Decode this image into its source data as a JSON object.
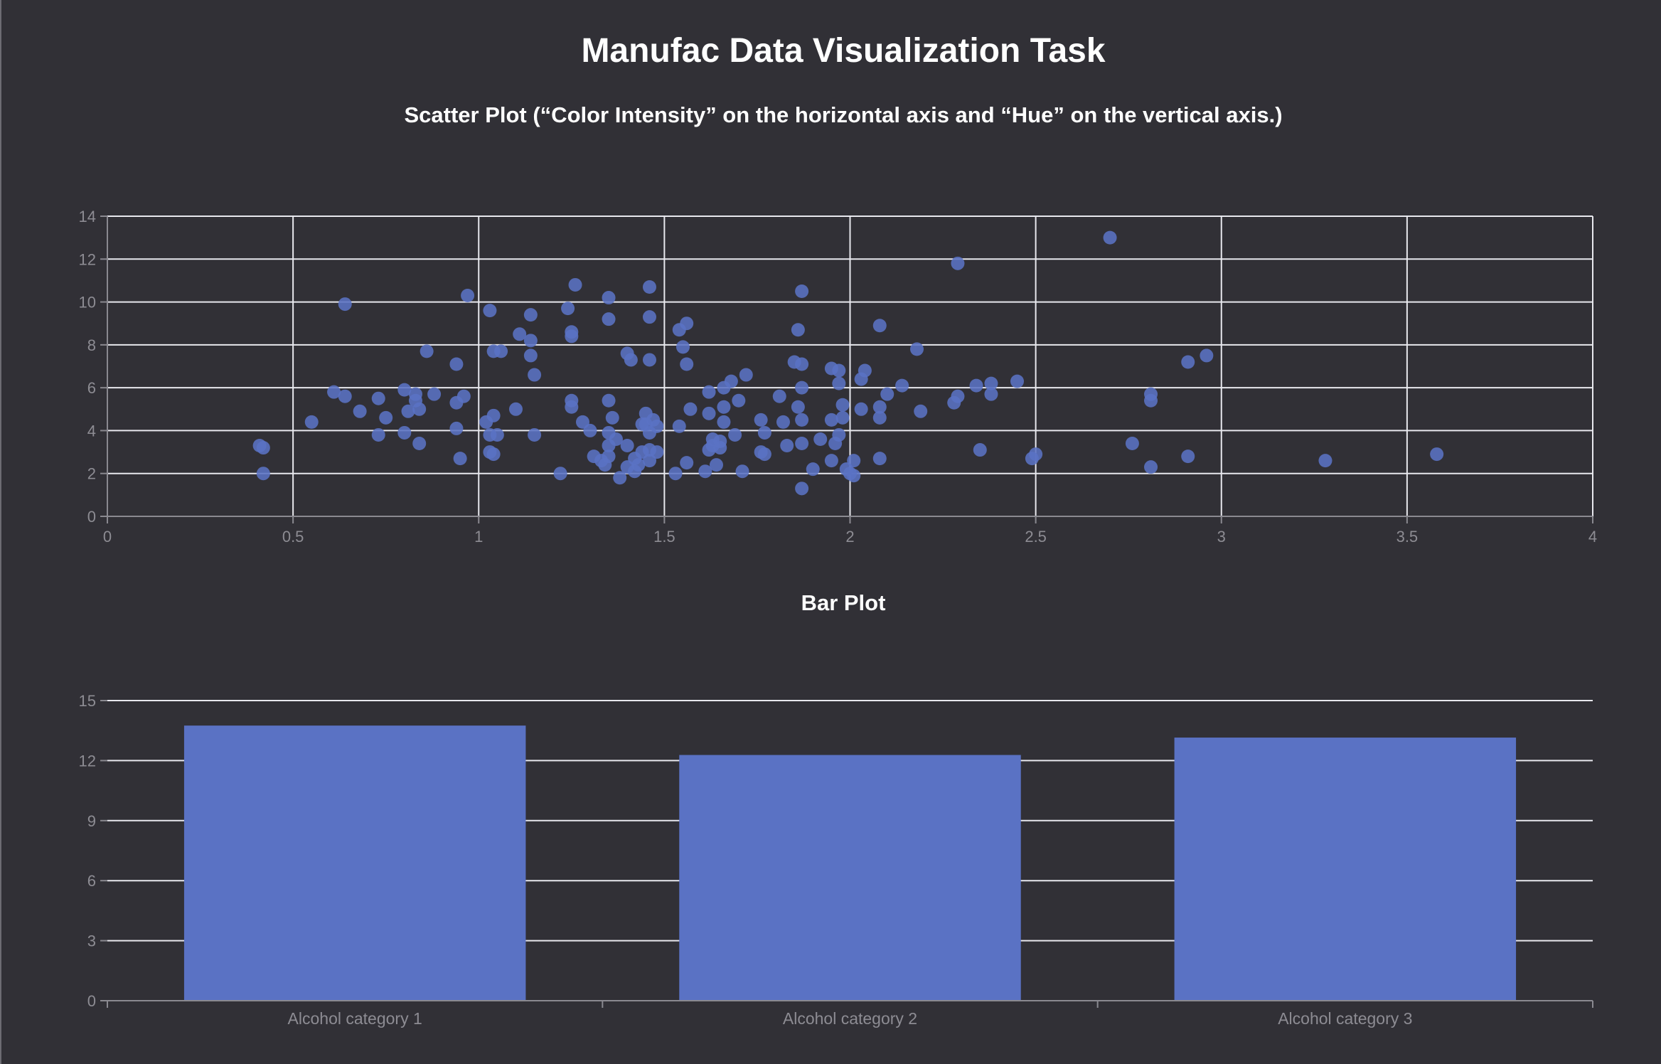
{
  "page": {
    "title": "Manufac Data Visualization Task"
  },
  "colors": {
    "background": "#313036",
    "series": "#5a72c4",
    "grid": "#e8e8ee",
    "tick": "#8d8c93"
  },
  "chart_data": [
    {
      "type": "scatter",
      "title": "Scatter Plot (“Color Intensity” on the horizontal axis and “Hue” on the vertical axis.)",
      "xlabel": "",
      "ylabel": "",
      "xlim": [
        0,
        4
      ],
      "ylim": [
        0,
        14
      ],
      "xticks": [
        0,
        0.5,
        1,
        1.5,
        2,
        2.5,
        3,
        3.5,
        4
      ],
      "yticks": [
        0,
        2,
        4,
        6,
        8,
        10,
        12,
        14
      ],
      "grid": true,
      "legend": "none",
      "points": [
        [
          0.41,
          3.3
        ],
        [
          0.42,
          3.2
        ],
        [
          0.42,
          2.0
        ],
        [
          0.55,
          4.4
        ],
        [
          0.61,
          5.8
        ],
        [
          0.64,
          5.6
        ],
        [
          0.64,
          9.9
        ],
        [
          0.68,
          4.9
        ],
        [
          0.73,
          5.5
        ],
        [
          0.73,
          3.8
        ],
        [
          0.75,
          4.6
        ],
        [
          0.8,
          5.9
        ],
        [
          0.8,
          3.9
        ],
        [
          0.81,
          4.9
        ],
        [
          0.83,
          5.7
        ],
        [
          0.83,
          5.4
        ],
        [
          0.84,
          3.4
        ],
        [
          0.84,
          5.0
        ],
        [
          0.86,
          7.7
        ],
        [
          0.88,
          5.7
        ],
        [
          0.94,
          7.1
        ],
        [
          0.94,
          5.3
        ],
        [
          0.94,
          4.1
        ],
        [
          0.95,
          2.7
        ],
        [
          0.96,
          5.6
        ],
        [
          0.97,
          10.3
        ],
        [
          1.02,
          4.4
        ],
        [
          1.03,
          9.6
        ],
        [
          1.03,
          3.8
        ],
        [
          1.03,
          3.0
        ],
        [
          1.04,
          2.9
        ],
        [
          1.04,
          4.7
        ],
        [
          1.04,
          7.7
        ],
        [
          1.05,
          3.8
        ],
        [
          1.06,
          7.7
        ],
        [
          1.1,
          5.0
        ],
        [
          1.11,
          8.5
        ],
        [
          1.14,
          9.4
        ],
        [
          1.14,
          8.2
        ],
        [
          1.14,
          7.5
        ],
        [
          1.15,
          6.6
        ],
        [
          1.15,
          3.8
        ],
        [
          1.22,
          2.0
        ],
        [
          1.24,
          9.7
        ],
        [
          1.25,
          8.6
        ],
        [
          1.25,
          8.4
        ],
        [
          1.25,
          5.4
        ],
        [
          1.25,
          5.1
        ],
        [
          1.26,
          10.8
        ],
        [
          1.28,
          4.4
        ],
        [
          1.3,
          4.0
        ],
        [
          1.31,
          2.8
        ],
        [
          1.33,
          2.6
        ],
        [
          1.34,
          2.4
        ],
        [
          1.35,
          10.2
        ],
        [
          1.35,
          9.2
        ],
        [
          1.35,
          5.4
        ],
        [
          1.35,
          3.9
        ],
        [
          1.35,
          3.3
        ],
        [
          1.35,
          2.8
        ],
        [
          1.36,
          4.6
        ],
        [
          1.37,
          3.6
        ],
        [
          1.38,
          1.8
        ],
        [
          1.4,
          3.3
        ],
        [
          1.4,
          2.3
        ],
        [
          1.4,
          7.6
        ],
        [
          1.41,
          7.3
        ],
        [
          1.42,
          2.1
        ],
        [
          1.42,
          2.7
        ],
        [
          1.43,
          2.4
        ],
        [
          1.44,
          4.3
        ],
        [
          1.44,
          3.0
        ],
        [
          1.45,
          4.8
        ],
        [
          1.45,
          4.3
        ],
        [
          1.46,
          10.7
        ],
        [
          1.46,
          9.3
        ],
        [
          1.46,
          7.3
        ],
        [
          1.46,
          3.9
        ],
        [
          1.46,
          3.1
        ],
        [
          1.46,
          2.6
        ],
        [
          1.47,
          4.5
        ],
        [
          1.48,
          4.2
        ],
        [
          1.48,
          3.0
        ],
        [
          1.53,
          2.0
        ],
        [
          1.54,
          8.7
        ],
        [
          1.54,
          4.2
        ],
        [
          1.55,
          7.9
        ],
        [
          1.56,
          9.0
        ],
        [
          1.56,
          7.1
        ],
        [
          1.56,
          2.5
        ],
        [
          1.57,
          5.0
        ],
        [
          1.61,
          2.1
        ],
        [
          1.62,
          5.8
        ],
        [
          1.62,
          4.8
        ],
        [
          1.62,
          3.1
        ],
        [
          1.63,
          3.6
        ],
        [
          1.63,
          3.3
        ],
        [
          1.64,
          2.4
        ],
        [
          1.65,
          3.5
        ],
        [
          1.65,
          3.2
        ],
        [
          1.66,
          6.0
        ],
        [
          1.66,
          5.1
        ],
        [
          1.66,
          4.4
        ],
        [
          1.68,
          6.3
        ],
        [
          1.69,
          3.8
        ],
        [
          1.7,
          5.4
        ],
        [
          1.71,
          2.1
        ],
        [
          1.72,
          6.6
        ],
        [
          1.76,
          4.5
        ],
        [
          1.76,
          3.0
        ],
        [
          1.77,
          3.9
        ],
        [
          1.77,
          2.9
        ],
        [
          1.81,
          5.6
        ],
        [
          1.82,
          4.4
        ],
        [
          1.83,
          3.3
        ],
        [
          1.85,
          7.2
        ],
        [
          1.86,
          8.7
        ],
        [
          1.86,
          5.1
        ],
        [
          1.87,
          10.5
        ],
        [
          1.87,
          7.1
        ],
        [
          1.87,
          6.0
        ],
        [
          1.87,
          4.5
        ],
        [
          1.87,
          3.4
        ],
        [
          1.87,
          1.3
        ],
        [
          1.9,
          2.2
        ],
        [
          1.92,
          3.6
        ],
        [
          1.95,
          6.9
        ],
        [
          1.95,
          4.5
        ],
        [
          1.95,
          2.6
        ],
        [
          1.96,
          3.4
        ],
        [
          1.97,
          6.8
        ],
        [
          1.97,
          6.2
        ],
        [
          1.97,
          3.8
        ],
        [
          1.98,
          5.2
        ],
        [
          1.98,
          4.6
        ],
        [
          1.99,
          2.2
        ],
        [
          2.0,
          2.0
        ],
        [
          2.01,
          2.6
        ],
        [
          2.01,
          1.9
        ],
        [
          2.03,
          6.4
        ],
        [
          2.03,
          5.0
        ],
        [
          2.04,
          6.8
        ],
        [
          2.08,
          8.9
        ],
        [
          2.08,
          5.1
        ],
        [
          2.08,
          4.6
        ],
        [
          2.08,
          2.7
        ],
        [
          2.1,
          5.7
        ],
        [
          2.14,
          6.1
        ],
        [
          2.18,
          7.8
        ],
        [
          2.19,
          4.9
        ],
        [
          2.28,
          5.3
        ],
        [
          2.29,
          11.8
        ],
        [
          2.29,
          5.6
        ],
        [
          2.34,
          6.1
        ],
        [
          2.35,
          3.1
        ],
        [
          2.38,
          6.2
        ],
        [
          2.38,
          5.7
        ],
        [
          2.45,
          6.3
        ],
        [
          2.49,
          2.7
        ],
        [
          2.5,
          2.9
        ],
        [
          2.7,
          13.0
        ],
        [
          2.76,
          3.4
        ],
        [
          2.81,
          5.7
        ],
        [
          2.81,
          5.4
        ],
        [
          2.81,
          2.3
        ],
        [
          2.91,
          7.2
        ],
        [
          2.91,
          2.8
        ],
        [
          2.96,
          7.5
        ],
        [
          3.28,
          2.6
        ],
        [
          3.58,
          2.9
        ]
      ]
    },
    {
      "type": "bar",
      "title": "Bar Plot",
      "xlabel": "",
      "ylabel": "",
      "ylim": [
        0,
        15
      ],
      "yticks": [
        0,
        3,
        6,
        9,
        12,
        15
      ],
      "grid": true,
      "legend": "none",
      "categories": [
        "Alcohol category 1",
        "Alcohol category 2",
        "Alcohol category 3"
      ],
      "values": [
        13.75,
        12.28,
        13.15
      ]
    }
  ]
}
